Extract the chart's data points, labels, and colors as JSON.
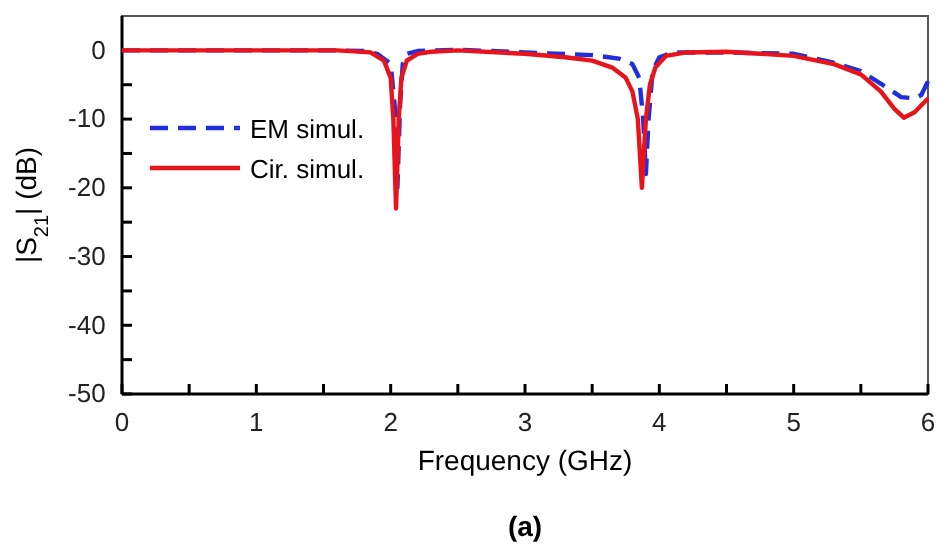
{
  "chart_data": {
    "type": "line",
    "xlabel": "Frequency  (GHz)",
    "ylabel": "|S$_{21}$| (dB)",
    "annotations": [
      "(a)"
    ],
    "xlim": [
      0,
      6
    ],
    "ylim": [
      -50,
      5
    ],
    "xticks": [
      0,
      {
        "value": 0.5,
        "label": null
      },
      1,
      {
        "value": 1.5,
        "label": null
      },
      2,
      {
        "value": 2.5,
        "label": null
      },
      3,
      {
        "value": 3.5,
        "label": null
      },
      4,
      {
        "value": 4.5,
        "label": null
      },
      5,
      {
        "value": 5.5,
        "label": null
      },
      6
    ],
    "yticks": [
      -50,
      {
        "value": -45,
        "label": null
      },
      -40,
      {
        "value": -35,
        "label": null
      },
      -30,
      {
        "value": -25,
        "label": null
      },
      -20,
      {
        "value": -15,
        "label": null
      },
      -10,
      {
        "value": -5,
        "label": null
      },
      0
    ],
    "legend": "top left",
    "grid": false,
    "series": [
      {
        "name": "EM simul.",
        "color": "#1f2fe0",
        "line_style": "dashed",
        "x": [
          0,
          1,
          1.6,
          1.8,
          1.9,
          1.97,
          2.0,
          2.03,
          2.05,
          2.07,
          2.09,
          2.12,
          2.2,
          2.5,
          3.0,
          3.5,
          3.7,
          3.8,
          3.85,
          3.88,
          3.9,
          3.92,
          3.95,
          4.0,
          4.1,
          4.5,
          5.0,
          5.3,
          5.5,
          5.7,
          5.8,
          5.9,
          5.95,
          6.0
        ],
        "values": [
          0,
          0,
          0,
          -0.1,
          -0.5,
          -1.5,
          -2,
          -8,
          -20,
          -8,
          -2,
          -0.5,
          -0.1,
          0.1,
          -0.3,
          -0.7,
          -1.2,
          -2,
          -4,
          -10,
          -18,
          -10,
          -3,
          -1,
          -0.3,
          -0.3,
          -0.5,
          -1.8,
          -3,
          -5.5,
          -6.8,
          -7,
          -6.5,
          -4.5
        ]
      },
      {
        "name": "Cir. simul.",
        "color": "#e8141c",
        "line_style": "solid",
        "x": [
          0,
          1,
          1.6,
          1.85,
          1.95,
          2.0,
          2.02,
          2.04,
          2.06,
          2.08,
          2.12,
          2.2,
          2.3,
          2.5,
          3.0,
          3.3,
          3.5,
          3.65,
          3.75,
          3.8,
          3.84,
          3.87,
          3.9,
          3.93,
          3.97,
          4.05,
          4.2,
          4.5,
          5.0,
          5.3,
          5.5,
          5.65,
          5.75,
          5.82,
          5.9,
          6.0
        ],
        "values": [
          0,
          0,
          0,
          -0.3,
          -1.5,
          -4,
          -10,
          -23,
          -10,
          -4,
          -1.5,
          -0.5,
          -0.2,
          0,
          -0.5,
          -1,
          -1.5,
          -2.5,
          -4,
          -6,
          -10,
          -20,
          -10,
          -5,
          -2.5,
          -0.8,
          -0.3,
          -0.2,
          -0.8,
          -2,
          -3.5,
          -6,
          -8.5,
          -9.8,
          -9,
          -7
        ]
      }
    ]
  }
}
